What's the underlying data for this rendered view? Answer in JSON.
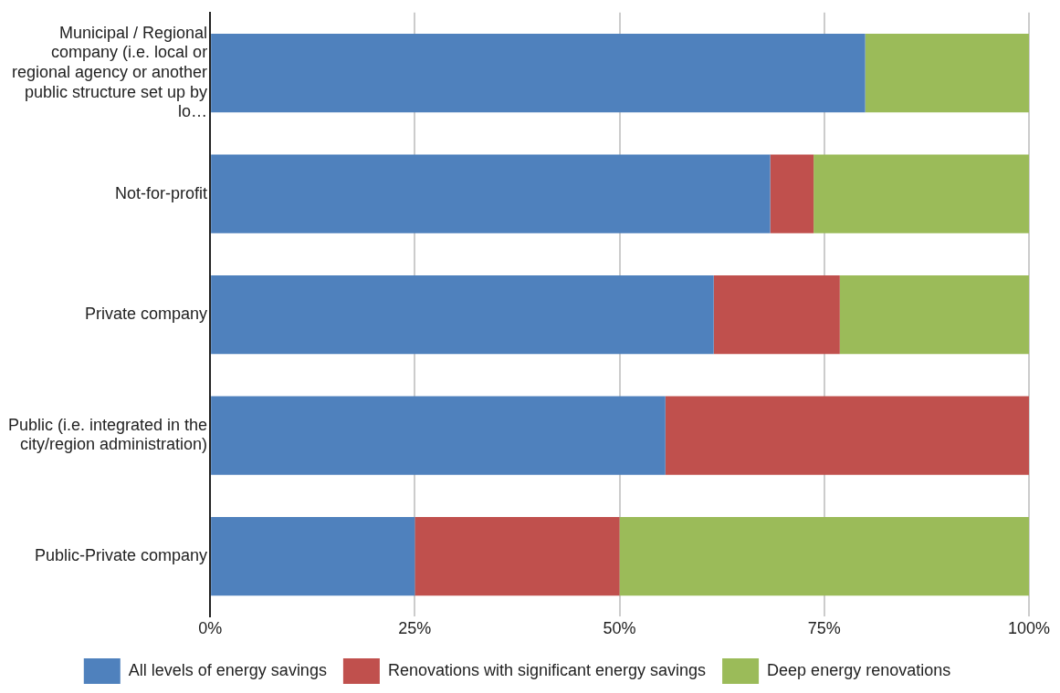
{
  "chart_data": {
    "type": "bar",
    "orientation": "horizontal",
    "stacked": true,
    "categories": [
      "Municipal / Regional company (i.e. local or regional agency or another public structure set up by lo…",
      "Not-for-profit",
      "Private company",
      "Public (i.e. integrated in the city/region administration)",
      "Public-Private company"
    ],
    "series": [
      {
        "name": "All levels of energy savings",
        "color": "#4f81bd",
        "values": [
          80,
          68.4,
          61.5,
          55.6,
          25
        ]
      },
      {
        "name": "Renovations with significant energy savings",
        "color": "#c0504d",
        "values": [
          0,
          5.3,
          15.4,
          44.4,
          25
        ]
      },
      {
        "name": "Deep energy renovations",
        "color": "#9bbb59",
        "values": [
          20,
          26.3,
          23.1,
          0,
          50
        ]
      }
    ],
    "xlim": [
      0,
      100
    ],
    "xticks": [
      {
        "value": 0,
        "label": "0%"
      },
      {
        "value": 25,
        "label": "25%"
      },
      {
        "value": 50,
        "label": "50%"
      },
      {
        "value": 75,
        "label": "75%"
      },
      {
        "value": 100,
        "label": "100%"
      }
    ],
    "grid": "x",
    "legend": "bottom"
  }
}
